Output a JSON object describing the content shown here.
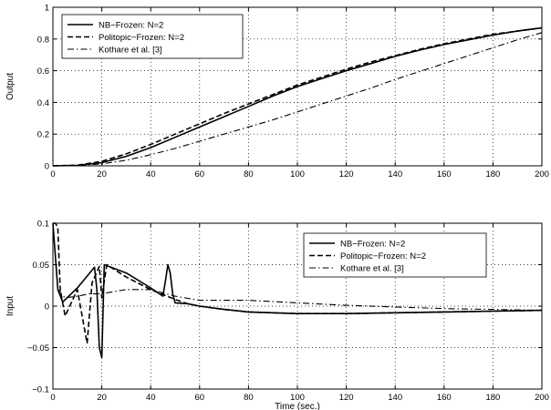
{
  "chart_data": [
    {
      "type": "line",
      "ylabel": "Output",
      "xlabel": "",
      "xlim": [
        0,
        200
      ],
      "ylim": [
        0,
        1
      ],
      "xticks": [
        0,
        20,
        40,
        60,
        80,
        100,
        120,
        140,
        160,
        180,
        200
      ],
      "yticks": [
        0,
        0.2,
        0.4,
        0.6,
        0.8,
        1
      ],
      "ytick_labels": [
        "0",
        "0.2",
        "0.4",
        "0.6",
        "0.8",
        "1"
      ],
      "grid": true,
      "legend": "top-left",
      "series": [
        {
          "name": "NB−Frozen: N=2",
          "style": "solid",
          "x": [
            0,
            10,
            20,
            30,
            40,
            50,
            60,
            70,
            80,
            90,
            100,
            110,
            120,
            130,
            140,
            150,
            160,
            170,
            180,
            190,
            200
          ],
          "y": [
            0,
            0.003,
            0.02,
            0.06,
            0.115,
            0.18,
            0.245,
            0.31,
            0.375,
            0.44,
            0.5,
            0.55,
            0.6,
            0.645,
            0.69,
            0.73,
            0.765,
            0.795,
            0.825,
            0.85,
            0.87
          ]
        },
        {
          "name": "Politopic−Frozen: N=2",
          "style": "dashed",
          "x": [
            0,
            10,
            20,
            30,
            40,
            50,
            60,
            70,
            80,
            90,
            100,
            110,
            120,
            130,
            140,
            150,
            160,
            170,
            180,
            190,
            200
          ],
          "y": [
            0,
            0.004,
            0.028,
            0.075,
            0.135,
            0.2,
            0.265,
            0.33,
            0.39,
            0.45,
            0.51,
            0.56,
            0.61,
            0.655,
            0.695,
            0.735,
            0.77,
            0.8,
            0.83,
            0.85,
            0.87
          ]
        },
        {
          "name": "Kothare et al. [3]",
          "style": "dashdot",
          "x": [
            0,
            10,
            20,
            30,
            40,
            50,
            60,
            70,
            80,
            90,
            100,
            110,
            120,
            130,
            140,
            150,
            160,
            170,
            180,
            190,
            200
          ],
          "y": [
            0,
            0.002,
            0.012,
            0.035,
            0.07,
            0.11,
            0.155,
            0.2,
            0.245,
            0.29,
            0.34,
            0.39,
            0.44,
            0.49,
            0.545,
            0.595,
            0.645,
            0.695,
            0.745,
            0.795,
            0.84
          ]
        }
      ]
    },
    {
      "type": "line",
      "ylabel": "Input",
      "xlabel": "Time (sec.)",
      "xlim": [
        0,
        200
      ],
      "ylim": [
        -0.1,
        0.1
      ],
      "xticks": [
        0,
        20,
        40,
        60,
        80,
        100,
        120,
        140,
        160,
        180,
        200
      ],
      "yticks": [
        -0.1,
        -0.05,
        0,
        0.05,
        0.1
      ],
      "ytick_labels": [
        "−0.1",
        "−0.05",
        "0",
        "0.05",
        "0.1"
      ],
      "grid": true,
      "legend": "top-right",
      "series": [
        {
          "name": "NB−Frozen: N=2",
          "style": "solid",
          "x": [
            0,
            2,
            4,
            10,
            17,
            18,
            19,
            20,
            21,
            30,
            40,
            45,
            46,
            47,
            48,
            49,
            50,
            55,
            60,
            70,
            80,
            100,
            120,
            140,
            160,
            180,
            200
          ],
          "y": [
            0.1,
            0.02,
            0.005,
            0.022,
            0.047,
            0.02,
            -0.05,
            -0.062,
            0.05,
            0.04,
            0.022,
            0.012,
            0.03,
            0.05,
            0.04,
            0.015,
            0.004,
            0.003,
            0.0,
            -0.004,
            -0.007,
            -0.009,
            -0.009,
            -0.008,
            -0.007,
            -0.006,
            -0.005
          ]
        },
        {
          "name": "Politopic−Frozen: N=2",
          "style": "dashed",
          "x": [
            0,
            1,
            2,
            3,
            5,
            10,
            14,
            16,
            19,
            20,
            22,
            30,
            40,
            50,
            55,
            60,
            70,
            80,
            100,
            120,
            140,
            160,
            180,
            200
          ],
          "y": [
            0.1,
            0.1,
            0.095,
            0.02,
            -0.012,
            0.02,
            -0.045,
            0.028,
            0.048,
            0.01,
            0.05,
            0.035,
            0.02,
            0.008,
            0.003,
            0.0,
            -0.004,
            -0.007,
            -0.009,
            -0.009,
            -0.008,
            -0.007,
            -0.006,
            -0.005
          ]
        },
        {
          "name": "Kothare et al. [3]",
          "style": "dashdot",
          "x": [
            0,
            2,
            5,
            10,
            15,
            20,
            30,
            40,
            50,
            60,
            80,
            100,
            120,
            140,
            160,
            180,
            200
          ],
          "y": [
            0.1,
            0.02,
            0.01,
            0.012,
            0.015,
            0.015,
            0.02,
            0.02,
            0.012,
            0.007,
            0.007,
            0.004,
            0.001,
            -0.001,
            -0.003,
            -0.004,
            -0.005
          ]
        }
      ]
    }
  ]
}
